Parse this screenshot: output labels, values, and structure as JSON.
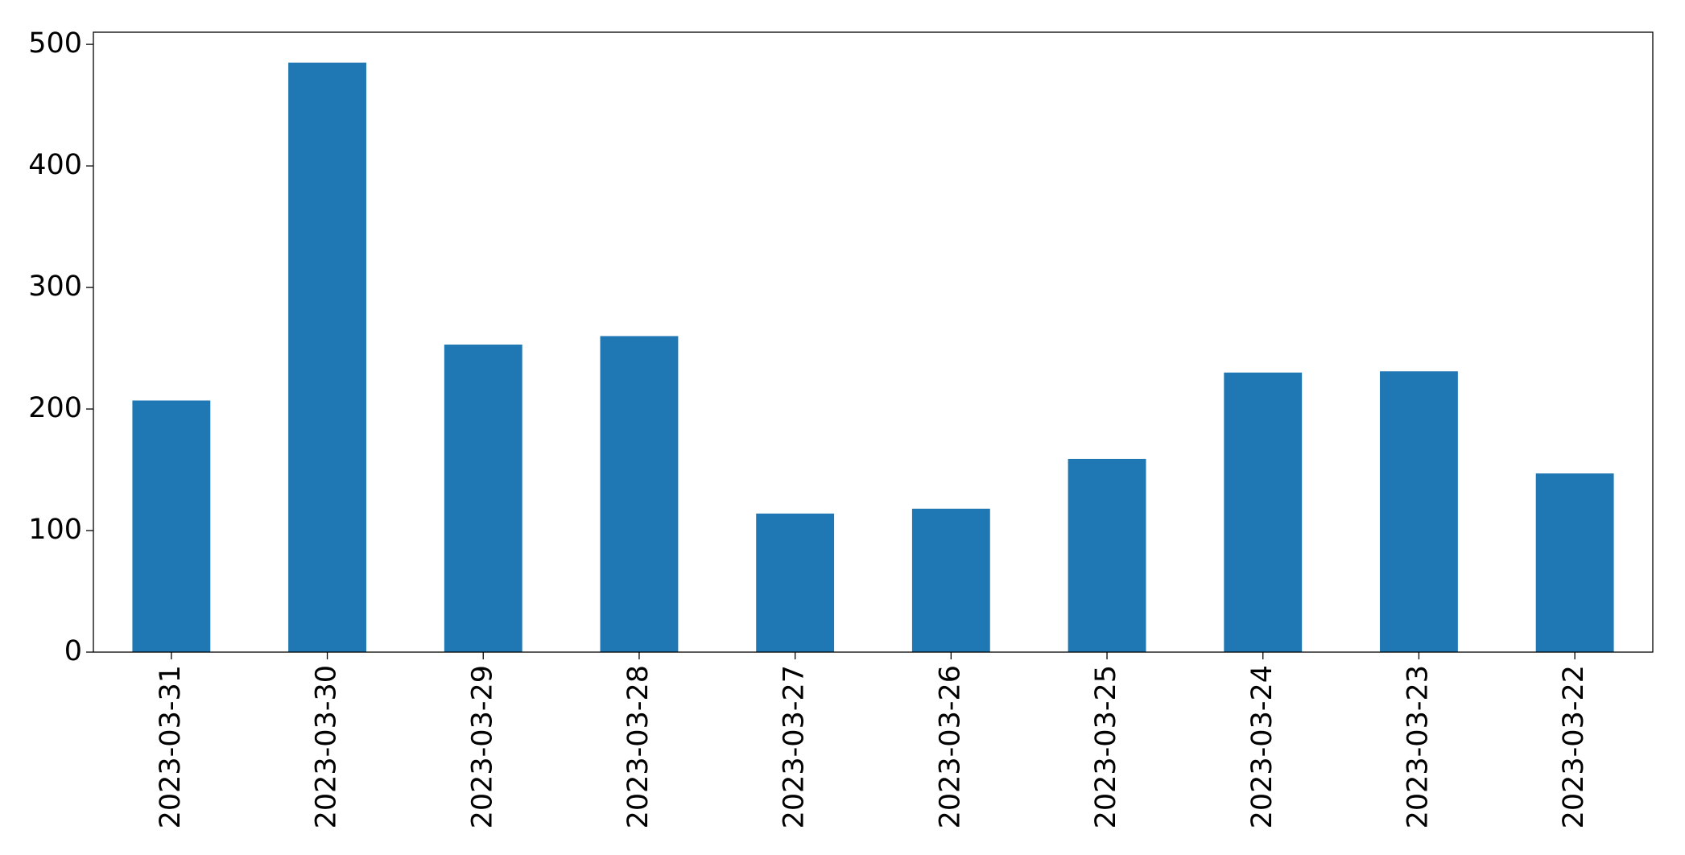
{
  "chart_data": {
    "type": "bar",
    "categories": [
      "2023-03-31",
      "2023-03-30",
      "2023-03-29",
      "2023-03-28",
      "2023-03-27",
      "2023-03-26",
      "2023-03-25",
      "2023-03-24",
      "2023-03-23",
      "2023-03-22"
    ],
    "values": [
      207,
      485,
      253,
      260,
      114,
      118,
      159,
      230,
      231,
      147
    ],
    "color": "#1f77b4",
    "ylim": [
      0,
      510
    ],
    "yticks": [
      0,
      100,
      200,
      300,
      400,
      500
    ],
    "grid": false
  }
}
